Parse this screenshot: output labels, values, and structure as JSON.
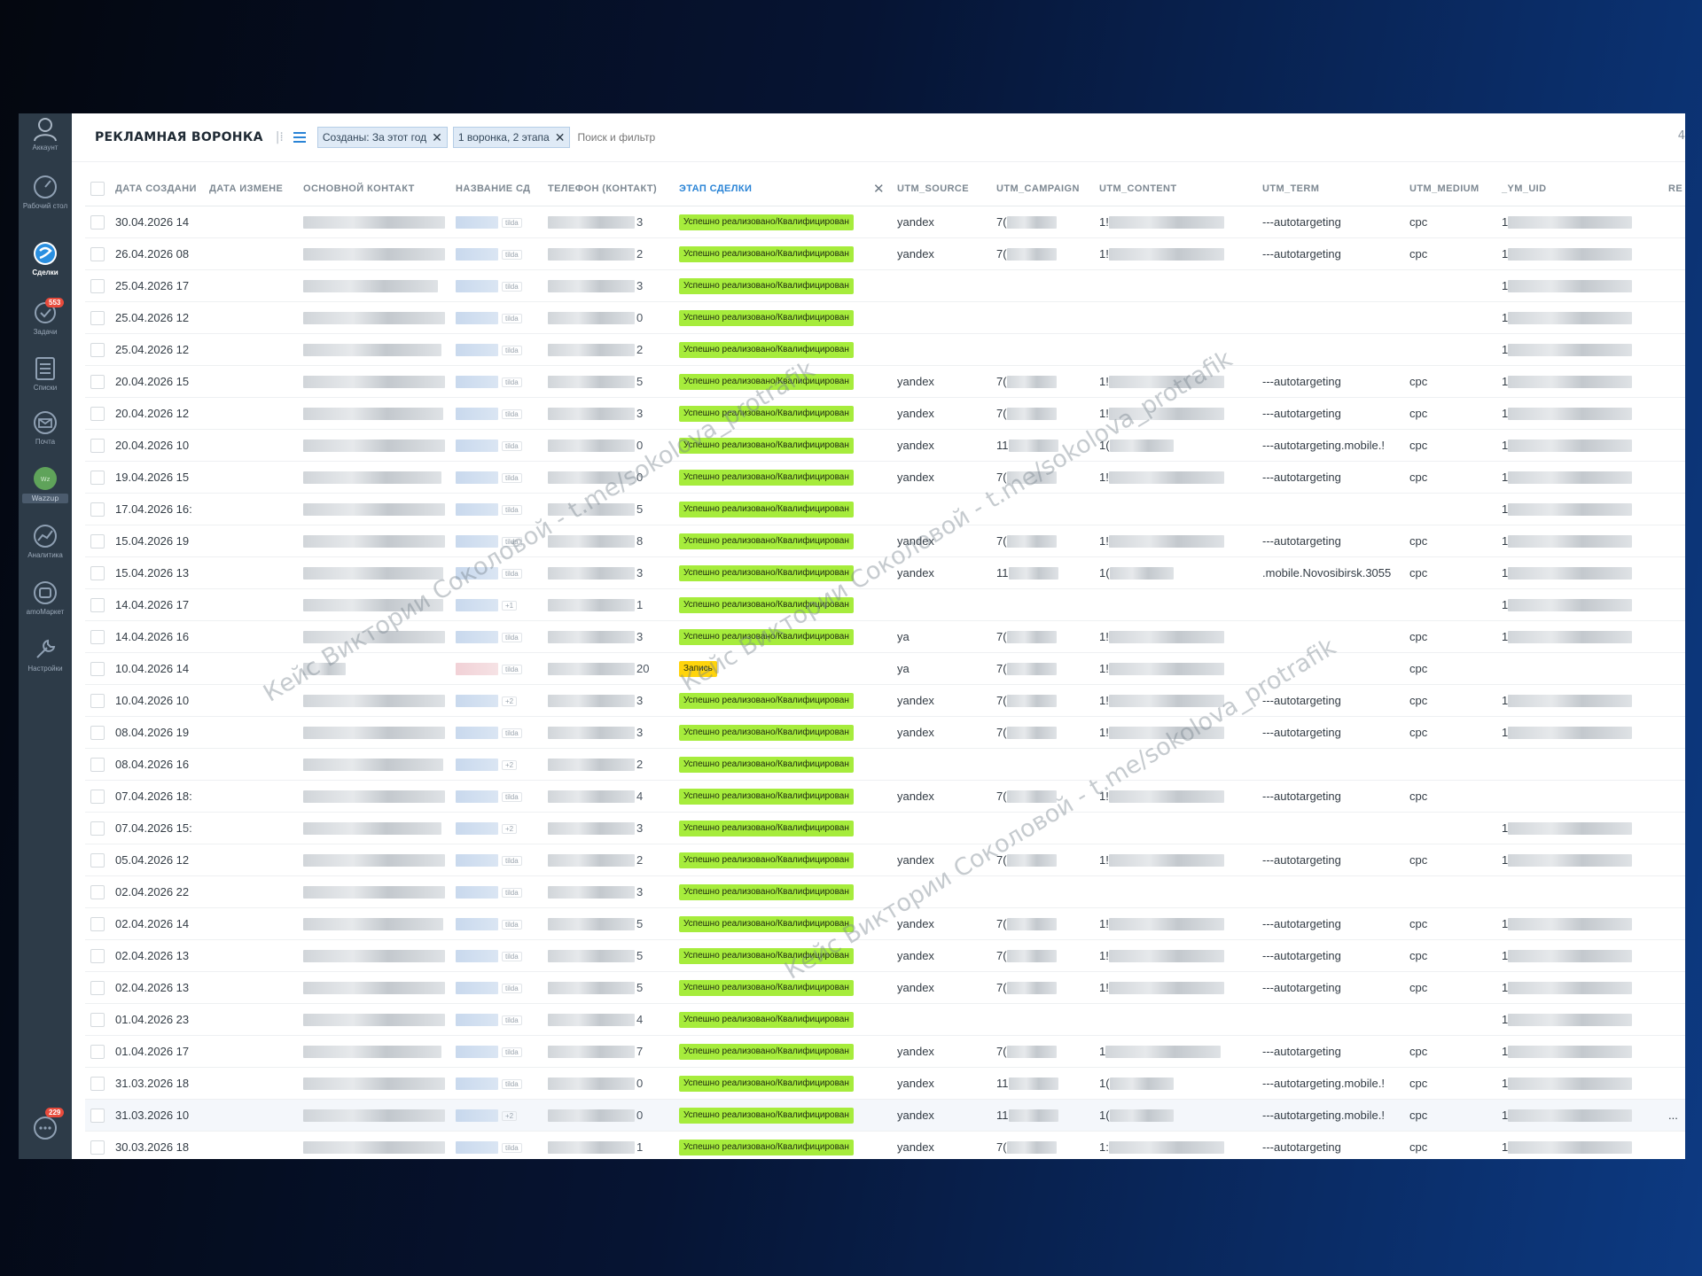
{
  "sidebar": {
    "account_label": "Аккаунт",
    "items": [
      {
        "label": "Рабочий стол",
        "icon": "dashboard-icon"
      },
      {
        "label": "Сделки",
        "icon": "deals-icon",
        "active": true
      },
      {
        "label": "Задачи",
        "icon": "tasks-icon",
        "badge": "553"
      },
      {
        "label": "Списки",
        "icon": "lists-icon"
      },
      {
        "label": "Почта",
        "icon": "mail-icon"
      },
      {
        "label": "Wazzup",
        "icon": "wazzup-icon"
      },
      {
        "label": "Аналитика",
        "icon": "analytics-icon"
      },
      {
        "label": "amoМаркет",
        "icon": "market-icon"
      },
      {
        "label": "Настройки",
        "icon": "settings-icon"
      }
    ],
    "chat_badge": "229"
  },
  "header": {
    "title": "РЕКЛАМНАЯ ВОРОНКА",
    "filters": [
      "Созданы: За этот год",
      "1 воронка, 2 этапа"
    ],
    "search_placeholder": "Поиск и фильтр",
    "corner_count": "4"
  },
  "table": {
    "columns": [
      "ДАТА СОЗДАНИ",
      "ДАТА ИЗМЕНЕ",
      "ОСНОВНОЙ КОНТАКТ",
      "НАЗВАНИЕ СД",
      "ТЕЛЕФОН (КОНТАКТ)",
      "ЭТАП СДЕЛКИ",
      "UTM_SOURCE",
      "UTM_CAMPAIGN",
      "UTM_CONTENT",
      "UTM_TERM",
      "UTM_MEDIUM",
      "_YM_UID",
      "RE"
    ],
    "selected_column": "ЭТАП СДЕЛКИ",
    "stage_colors": {
      "Успешно реализовано/Квалифицирован": "#a6ec3c",
      "Запись": "#ffd40c"
    },
    "rows": [
      {
        "date": "30.04.2026 14",
        "tag": "tilda",
        "phone_tail": "3",
        "stage": "Успешно реализовано/Квалифицирован",
        "source": "yandex",
        "campaign": "7(",
        "content": "1!",
        "term": "---autotargeting",
        "medium": "cpc",
        "ym": "1"
      },
      {
        "date": "26.04.2026 08",
        "tag": "tilda",
        "phone_tail": "2",
        "stage": "Успешно реализовано/Квалифицирован",
        "source": "yandex",
        "campaign": "7(",
        "content": "1!",
        "term": "---autotargeting",
        "medium": "cpc",
        "ym": "1"
      },
      {
        "date": "25.04.2026 17",
        "tag": "tilda",
        "phone_tail": "3",
        "stage": "Успешно реализовано/Квалифицирован",
        "source": "",
        "campaign": "",
        "content": "",
        "term": "",
        "medium": "",
        "ym": "1"
      },
      {
        "date": "25.04.2026 12",
        "tag": "tilda",
        "phone_tail": "0",
        "stage": "Успешно реализовано/Квалифицирован",
        "source": "",
        "campaign": "",
        "content": "",
        "term": "",
        "medium": "",
        "ym": "1"
      },
      {
        "date": "25.04.2026 12",
        "tag": "tilda",
        "phone_tail": "2",
        "stage": "Успешно реализовано/Квалифицирован",
        "source": "",
        "campaign": "",
        "content": "",
        "term": "",
        "medium": "",
        "ym": "1"
      },
      {
        "date": "20.04.2026 15",
        "tag": "tilda",
        "phone_tail": "5",
        "stage": "Успешно реализовано/Квалифицирован",
        "source": "yandex",
        "campaign": "7(",
        "content": "1!",
        "term": "---autotargeting",
        "medium": "cpc",
        "ym": "1"
      },
      {
        "date": "20.04.2026 12",
        "tag": "tilda",
        "phone_tail": "3",
        "stage": "Успешно реализовано/Квалифицирован",
        "source": "yandex",
        "campaign": "7(",
        "content": "1!",
        "term": "---autotargeting",
        "medium": "cpc",
        "ym": "1"
      },
      {
        "date": "20.04.2026 10",
        "tag": "tilda",
        "phone_tail": "0",
        "stage": "Успешно реализовано/Квалифицирован",
        "source": "yandex",
        "campaign": "11",
        "content": "1(",
        "term": "---autotargeting.mobile.!",
        "medium": "cpc",
        "ym": "1"
      },
      {
        "date": "19.04.2026 15",
        "tag": "tilda",
        "phone_tail": "0",
        "stage": "Успешно реализовано/Квалифицирован",
        "source": "yandex",
        "campaign": "7(",
        "content": "1!",
        "term": "---autotargeting",
        "medium": "cpc",
        "ym": "1"
      },
      {
        "date": "17.04.2026 16:",
        "tag": "tilda",
        "phone_tail": "5",
        "stage": "Успешно реализовано/Квалифицирован",
        "source": "",
        "campaign": "",
        "content": "",
        "term": "",
        "medium": "",
        "ym": "1"
      },
      {
        "date": "15.04.2026 19",
        "tag": "tilda",
        "phone_tail": "8",
        "stage": "Успешно реализовано/Квалифицирован",
        "source": "yandex",
        "campaign": "7(",
        "content": "1!",
        "term": "---autotargeting",
        "medium": "cpc",
        "ym": "1"
      },
      {
        "date": "15.04.2026 13",
        "tag": "tilda",
        "phone_tail": "3",
        "stage": "Успешно реализовано/Квалифицирован",
        "source": "yandex",
        "campaign": "11",
        "content": "1(",
        "term": ".mobile.Novosibirsk.3055",
        "medium": "cpc",
        "ym": "1"
      },
      {
        "date": "14.04.2026 17",
        "tag": "+1",
        "phone_tail": "1",
        "stage": "Успешно реализовано/Квалифицирован",
        "source": "",
        "campaign": "",
        "content": "",
        "term": "",
        "medium": "",
        "ym": "1"
      },
      {
        "date": "14.04.2026 16",
        "tag": "tilda",
        "phone_tail": "3",
        "stage": "Успешно реализовано/Квалифицирован",
        "source": "ya",
        "campaign": "7(",
        "content": "1!",
        "term": "",
        "medium": "cpc",
        "ym": "1"
      },
      {
        "date": "10.04.2026 14",
        "tag": "tilda",
        "phone_tail": "20",
        "stage": "Запись",
        "source": "ya",
        "campaign": "7(",
        "content": "1!",
        "term": "",
        "medium": "cpc",
        "ym": ""
      },
      {
        "date": "10.04.2026 10",
        "tag": "+2",
        "phone_tail": "3",
        "stage": "Успешно реализовано/Квалифицирован",
        "source": "yandex",
        "campaign": "7(",
        "content": "1!",
        "term": "---autotargeting",
        "medium": "cpc",
        "ym": "1"
      },
      {
        "date": "08.04.2026 19",
        "tag": "tilda",
        "phone_tail": "3",
        "stage": "Успешно реализовано/Квалифицирован",
        "source": "yandex",
        "campaign": "7(",
        "content": "1!",
        "term": "---autotargeting",
        "medium": "cpc",
        "ym": "1"
      },
      {
        "date": "08.04.2026 16",
        "tag": "+2",
        "phone_tail": "2",
        "stage": "Успешно реализовано/Квалифицирован",
        "source": "",
        "campaign": "",
        "content": "",
        "term": "",
        "medium": "",
        "ym": ""
      },
      {
        "date": "07.04.2026 18:",
        "tag": "tilda",
        "phone_tail": "4",
        "stage": "Успешно реализовано/Квалифицирован",
        "source": "yandex",
        "campaign": "7(",
        "content": "1!",
        "term": "---autotargeting",
        "medium": "cpc",
        "ym": ""
      },
      {
        "date": "07.04.2026 15:",
        "tag": "+2",
        "phone_tail": "3",
        "stage": "Успешно реализовано/Квалифицирован",
        "source": "",
        "campaign": "",
        "content": "",
        "term": "",
        "medium": "",
        "ym": "1"
      },
      {
        "date": "05.04.2026 12",
        "tag": "tilda",
        "phone_tail": "2",
        "stage": "Успешно реализовано/Квалифицирован",
        "source": "yandex",
        "campaign": "7(",
        "content": "1!",
        "term": "---autotargeting",
        "medium": "cpc",
        "ym": "1"
      },
      {
        "date": "02.04.2026 22",
        "tag": "tilda",
        "phone_tail": "3",
        "stage": "Успешно реализовано/Квалифицирован",
        "source": "",
        "campaign": "",
        "content": "",
        "term": "",
        "medium": "",
        "ym": ""
      },
      {
        "date": "02.04.2026 14",
        "tag": "tilda",
        "phone_tail": "5",
        "stage": "Успешно реализовано/Квалифицирован",
        "source": "yandex",
        "campaign": "7(",
        "content": "1!",
        "term": "---autotargeting",
        "medium": "cpc",
        "ym": "1"
      },
      {
        "date": "02.04.2026 13",
        "tag": "tilda",
        "phone_tail": "5",
        "stage": "Успешно реализовано/Квалифицирован",
        "source": "yandex",
        "campaign": "7(",
        "content": "1!",
        "term": "---autotargeting",
        "medium": "cpc",
        "ym": "1"
      },
      {
        "date": "02.04.2026 13",
        "tag": "tilda",
        "phone_tail": "5",
        "stage": "Успешно реализовано/Квалифицирован",
        "source": "yandex",
        "campaign": "7(",
        "content": "1!",
        "term": "---autotargeting",
        "medium": "cpc",
        "ym": "1"
      },
      {
        "date": "01.04.2026 23",
        "tag": "tilda",
        "phone_tail": "4",
        "stage": "Успешно реализовано/Квалифицирован",
        "source": "",
        "campaign": "",
        "content": "",
        "term": "",
        "medium": "",
        "ym": "1"
      },
      {
        "date": "01.04.2026 17",
        "tag": "tilda",
        "phone_tail": "7",
        "stage": "Успешно реализовано/Квалифицирован",
        "source": "yandex",
        "campaign": "7(",
        "content": "1",
        "term": "---autotargeting",
        "medium": "cpc",
        "ym": "1"
      },
      {
        "date": "31.03.2026 18",
        "tag": "tilda",
        "phone_tail": "0",
        "stage": "Успешно реализовано/Квалифицирован",
        "source": "yandex",
        "campaign": "11",
        "content": "1(",
        "term": "---autotargeting.mobile.!",
        "medium": "cpc",
        "ym": "1"
      },
      {
        "date": "31.03.2026 10",
        "tag": "+2",
        "phone_tail": "0",
        "stage": "Успешно реализовано/Квалифицирован",
        "source": "yandex",
        "campaign": "11",
        "content": "1(",
        "term": "---autotargeting.mobile.!",
        "medium": "cpc",
        "ym": "1",
        "highlight": true,
        "more": "..."
      },
      {
        "date": "30.03.2026 18",
        "tag": "tilda",
        "phone_tail": "1",
        "stage": "Успешно реализовано/Квалифицирован",
        "source": "yandex",
        "campaign": "7(",
        "content": "1:",
        "term": "---autotargeting",
        "medium": "cpc",
        "ym": "1"
      }
    ]
  },
  "watermarks": [
    "Кейс Виктории Соколовой - t.me/sokolova_protrafik",
    "Кейс Виктории Соколовой - t.me/sokolova_protrafik",
    "Кейс Виктории Соколовой - t.me/sokolova_protrafik"
  ]
}
